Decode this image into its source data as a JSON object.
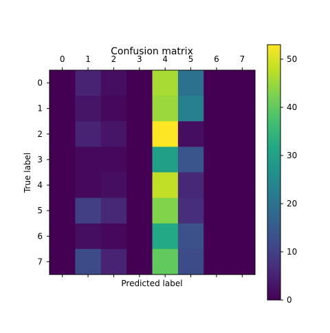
{
  "chart_data": {
    "type": "heatmap",
    "title": "Confusion matrix",
    "xlabel": "Predicted label",
    "ylabel": "True label",
    "x_categories": [
      "0",
      "1",
      "2",
      "3",
      "4",
      "5",
      "6",
      "7"
    ],
    "y_categories": [
      "0",
      "1",
      "2",
      "3",
      "4",
      "5",
      "6",
      "7"
    ],
    "values": [
      [
        0,
        5,
        2,
        0,
        46,
        20,
        0,
        0
      ],
      [
        0,
        3,
        1,
        0,
        45,
        23,
        0,
        0
      ],
      [
        0,
        5,
        3,
        0,
        53,
        2,
        0,
        0
      ],
      [
        0,
        1,
        1,
        0,
        30,
        14,
        0,
        0
      ],
      [
        0,
        1,
        2,
        0,
        48,
        6,
        0,
        0
      ],
      [
        0,
        10,
        6,
        0,
        43,
        7,
        0,
        0
      ],
      [
        0,
        2,
        1,
        0,
        32,
        13,
        0,
        0
      ],
      [
        0,
        12,
        5,
        0,
        40,
        12,
        0,
        0
      ]
    ],
    "colormap": "viridis",
    "vmin": 0,
    "vmax": 53,
    "colorbar_ticks": [
      0,
      10,
      20,
      30,
      40,
      50
    ],
    "x_ticks_position": "top",
    "grid": false,
    "colorbar": "right"
  }
}
